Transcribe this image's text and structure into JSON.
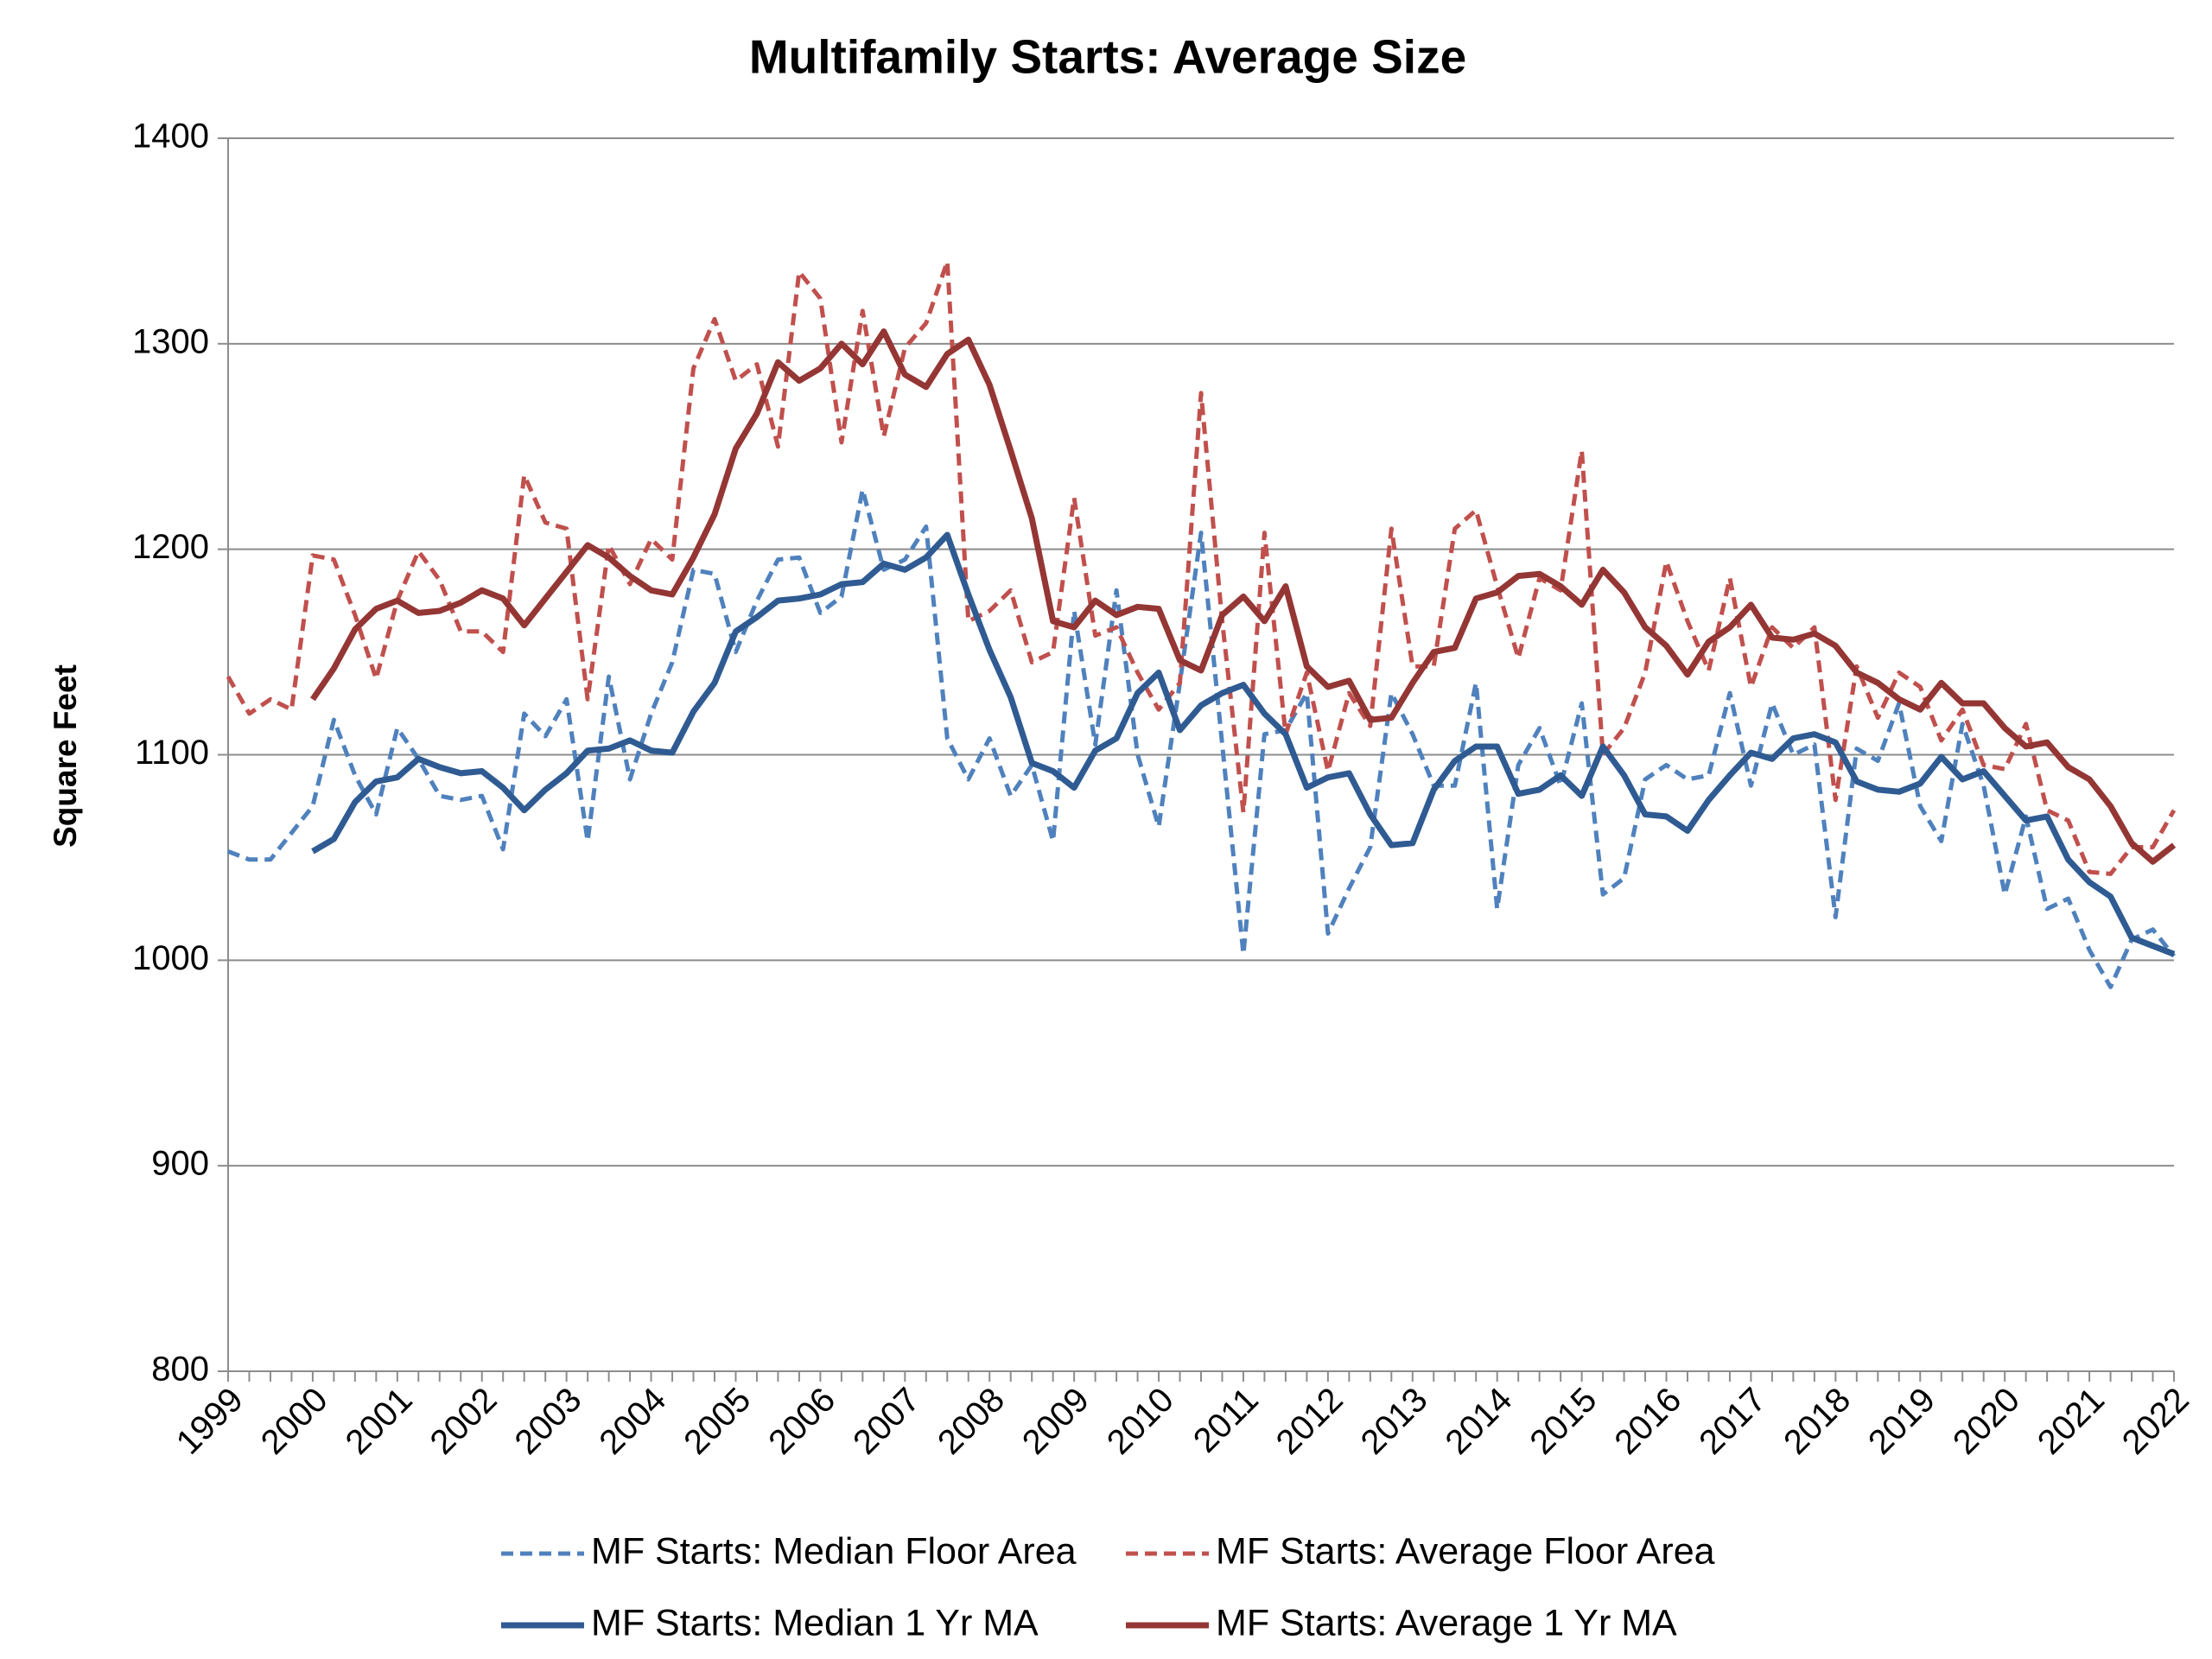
{
  "chart_data": {
    "type": "line",
    "title": "Multifamily Starts: Average Size",
    "y_label": "Square Feet",
    "categories": [
      "1999",
      null,
      null,
      null,
      "2000",
      null,
      null,
      null,
      "2001",
      null,
      null,
      null,
      "2002",
      null,
      null,
      null,
      "2003",
      null,
      null,
      null,
      "2004",
      null,
      null,
      null,
      "2005",
      null,
      null,
      null,
      "2006",
      null,
      null,
      null,
      "2007",
      null,
      null,
      null,
      "2008",
      null,
      null,
      null,
      "2009",
      null,
      null,
      null,
      "2010",
      null,
      null,
      null,
      "2011",
      null,
      null,
      null,
      "2012",
      null,
      null,
      null,
      "2013",
      null,
      null,
      null,
      "2014",
      null,
      null,
      null,
      "2015",
      null,
      null,
      null,
      "2016",
      null,
      null,
      null,
      "2017",
      null,
      null,
      null,
      "2018",
      null,
      null,
      null,
      "2019",
      null,
      null,
      null,
      "2020",
      null,
      null,
      null,
      "2021",
      null,
      null,
      null,
      "2022"
    ],
    "ylim": [
      800,
      1400
    ],
    "yticks": [
      800,
      900,
      1000,
      1100,
      1200,
      1300,
      1400
    ],
    "grid": true,
    "legend": "bottom",
    "series": [
      {
        "name": "MF Starts: Median Floor Area",
        "color": "#4f81bd",
        "style": "dashed",
        "values": [
          1053,
          1049,
          1049,
          1062,
          1075,
          1117,
          1090,
          1071,
          1113,
          1098,
          1080,
          1078,
          1080,
          1054,
          1120,
          1109,
          1127,
          1058,
          1138,
          1088,
          1120,
          1145,
          1190,
          1188,
          1150,
          1175,
          1195,
          1196,
          1169,
          1177,
          1229,
          1190,
          1195,
          1211,
          1108,
          1088,
          1108,
          1080,
          1095,
          1058,
          1170,
          1105,
          1180,
          1100,
          1065,
          1135,
          1208,
          1105,
          1003,
          1110,
          1112,
          1130,
          1013,
          1035,
          1055,
          1130,
          1110,
          1085,
          1085,
          1135,
          1025,
          1095,
          1113,
          1085,
          1125,
          1032,
          1040,
          1088,
          1095,
          1088,
          1090,
          1130,
          1085,
          1125,
          1100,
          1105,
          1021,
          1103,
          1097,
          1125,
          1075,
          1058,
          1115,
          1085,
          1032,
          1070,
          1025,
          1030,
          1005,
          987,
          1010,
          1015,
          1002
        ]
      },
      {
        "name": "MF Starts: Average Floor Area",
        "color": "#c0504d",
        "style": "dashed",
        "values": [
          1138,
          1120,
          1127,
          1122,
          1197,
          1195,
          1168,
          1137,
          1175,
          1199,
          1185,
          1160,
          1160,
          1150,
          1236,
          1213,
          1210,
          1127,
          1202,
          1183,
          1205,
          1195,
          1288,
          1312,
          1282,
          1290,
          1250,
          1335,
          1322,
          1252,
          1316,
          1255,
          1298,
          1310,
          1340,
          1165,
          1170,
          1180,
          1145,
          1150,
          1225,
          1158,
          1162,
          1140,
          1122,
          1135,
          1276,
          1165,
          1072,
          1208,
          1110,
          1140,
          1092,
          1130,
          1114,
          1210,
          1143,
          1143,
          1210,
          1219,
          1182,
          1147,
          1186,
          1180,
          1248,
          1100,
          1113,
          1140,
          1194,
          1165,
          1141,
          1186,
          1133,
          1162,
          1152,
          1162,
          1078,
          1143,
          1118,
          1140,
          1133,
          1107,
          1122,
          1095,
          1093,
          1115,
          1073,
          1068,
          1043,
          1042,
          1055,
          1055,
          1073
        ]
      },
      {
        "name": "MF Starts: Median 1 Yr MA",
        "color": "#2f5b92",
        "style": "solid",
        "values": [
          null,
          null,
          null,
          null,
          1053,
          1059,
          1077,
          1087,
          1089,
          1098,
          1094,
          1091,
          1092,
          1084,
          1073,
          1083,
          1091,
          1102,
          1103,
          1107,
          1102,
          1101,
          1121,
          1135,
          1160,
          1167,
          1175,
          1176,
          1178,
          1183,
          1184,
          1193,
          1190,
          1196,
          1207,
          1178,
          1151,
          1128,
          1096,
          1092,
          1084,
          1102,
          1108,
          1130,
          1140,
          1112,
          1124,
          1130,
          1134,
          1120,
          1110,
          1084,
          1089,
          1091,
          1071,
          1056,
          1057,
          1083,
          1097,
          1104,
          1104,
          1081,
          1083,
          1090,
          1080,
          1104,
          1090,
          1071,
          1070,
          1063,
          1078,
          1090,
          1101,
          1098,
          1108,
          1110,
          1106,
          1087,
          1083,
          1082,
          1086,
          1099,
          1088,
          1092,
          1080,
          1068,
          1070,
          1049,
          1038,
          1031,
          1011,
          1007,
          1003
        ]
      },
      {
        "name": "MF Starts: Average 1 Yr MA",
        "color": "#943634",
        "style": "solid",
        "values": [
          null,
          null,
          null,
          null,
          1127,
          1142,
          1161,
          1171,
          1175,
          1169,
          1170,
          1174,
          1180,
          1176,
          1163,
          1176,
          1189,
          1202,
          1196,
          1187,
          1180,
          1178,
          1196,
          1217,
          1249,
          1266,
          1291,
          1282,
          1288,
          1300,
          1290,
          1306,
          1285,
          1279,
          1295,
          1302,
          1280,
          1248,
          1215,
          1165,
          1162,
          1175,
          1168,
          1172,
          1171,
          1146,
          1141,
          1168,
          1177,
          1165,
          1182,
          1143,
          1133,
          1136,
          1117,
          1118,
          1135,
          1150,
          1152,
          1176,
          1179,
          1187,
          1188,
          1182,
          1173,
          1190,
          1179,
          1162,
          1153,
          1139,
          1155,
          1162,
          1173,
          1157,
          1156,
          1159,
          1153,
          1140,
          1135,
          1127,
          1122,
          1135,
          1125,
          1125,
          1113,
          1104,
          1106,
          1094,
          1088,
          1075,
          1057,
          1048,
          1056
        ]
      }
    ]
  }
}
